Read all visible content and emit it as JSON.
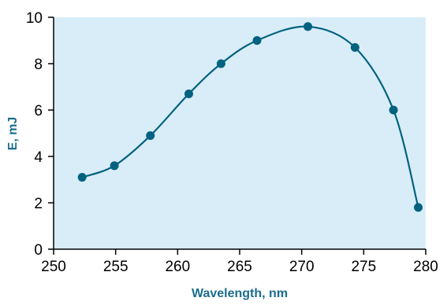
{
  "chart_data": {
    "type": "scatter",
    "title": "",
    "xlabel": "Wavelength, nm",
    "ylabel": "E, mJ",
    "xlim": [
      250,
      280
    ],
    "ylim": [
      0,
      10
    ],
    "x_ticks": [
      250,
      255,
      260,
      265,
      270,
      275,
      280
    ],
    "y_ticks": [
      0,
      2,
      4,
      6,
      8,
      10
    ],
    "grid": false,
    "legend": "none",
    "colors": {
      "plot_background": "#d9edf9",
      "series": "#00627f",
      "axis_title": "#1a6d8c"
    },
    "series": [
      {
        "points": [
          {
            "x": 252.3,
            "y": 3.1
          },
          {
            "x": 254.9,
            "y": 3.6
          },
          {
            "x": 257.8,
            "y": 4.9
          },
          {
            "x": 260.9,
            "y": 6.7
          },
          {
            "x": 263.5,
            "y": 8.0
          },
          {
            "x": 266.4,
            "y": 9.0
          },
          {
            "x": 270.5,
            "y": 9.6
          },
          {
            "x": 274.3,
            "y": 8.7
          },
          {
            "x": 277.4,
            "y": 6.0
          },
          {
            "x": 279.4,
            "y": 1.8
          }
        ]
      }
    ]
  }
}
